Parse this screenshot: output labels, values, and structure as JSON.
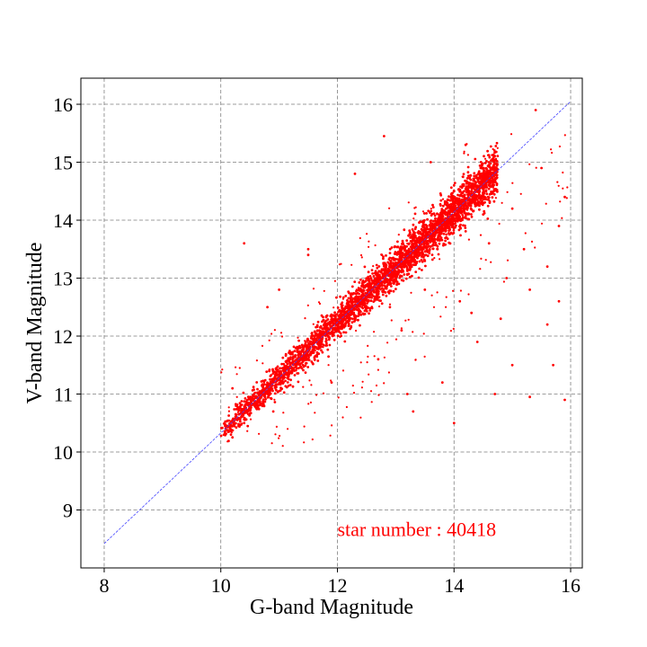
{
  "chart_data": {
    "type": "scatter",
    "title": "",
    "xlabel": "G-band Magnitude",
    "ylabel": "V-band Magnitude",
    "xlim": [
      7.6,
      16.2
    ],
    "ylim": [
      8.0,
      16.45
    ],
    "xticks": [
      8,
      10,
      12,
      14,
      16
    ],
    "yticks": [
      9,
      10,
      11,
      12,
      13,
      14,
      15,
      16
    ],
    "grid": true,
    "colors": {
      "points": "#ff0000",
      "reference_line": "#4444ff",
      "annotation": "#ff0000"
    },
    "reference_line": {
      "x": [
        8,
        16
      ],
      "y": [
        8.42,
        16.05
      ]
    },
    "main_sequence": {
      "x_range": [
        10.0,
        14.75
      ],
      "relation": {
        "slope": 0.955,
        "intercept": 0.78
      },
      "scatter_sigma": [
        0.1,
        0.2
      ]
    },
    "outlier_points": [
      [
        10.4,
        13.6
      ],
      [
        10.2,
        11.1
      ],
      [
        10.4,
        10.5
      ],
      [
        11.5,
        13.5
      ],
      [
        10.9,
        10.7
      ],
      [
        12.8,
        15.45
      ],
      [
        12.3,
        14.8
      ],
      [
        11.5,
        11.6
      ],
      [
        11.9,
        11.2
      ],
      [
        13.3,
        10.7
      ],
      [
        13.8,
        11.2
      ],
      [
        14.4,
        11.9
      ],
      [
        14.3,
        12.4
      ],
      [
        14.8,
        12.3
      ],
      [
        15.0,
        11.5
      ],
      [
        15.3,
        10.95
      ],
      [
        15.7,
        11.5
      ],
      [
        15.9,
        10.9
      ],
      [
        15.3,
        12.8
      ],
      [
        15.2,
        13.5
      ],
      [
        15.8,
        13.9
      ],
      [
        15.9,
        14.4
      ],
      [
        15.5,
        14.9
      ],
      [
        15.4,
        15.9
      ],
      [
        15.0,
        14.2
      ],
      [
        14.9,
        13.0
      ],
      [
        14.6,
        13.6
      ],
      [
        13.2,
        11.0
      ],
      [
        14.0,
        10.5
      ],
      [
        12.9,
        12.5
      ],
      [
        13.5,
        12.8
      ],
      [
        14.1,
        12.6
      ],
      [
        15.6,
        13.2
      ],
      [
        15.6,
        12.2
      ],
      [
        14.7,
        11.0
      ],
      [
        12.7,
        11.6
      ],
      [
        13.1,
        12.1
      ],
      [
        11.0,
        12.8
      ],
      [
        11.5,
        13.4
      ],
      [
        10.8,
        12.5
      ],
      [
        14.2,
        15.3
      ],
      [
        13.6,
        15.0
      ],
      [
        14.0,
        14.6
      ],
      [
        14.5,
        14.1
      ],
      [
        15.8,
        12.6
      ]
    ],
    "annotations": [
      {
        "text": "star number : 40418",
        "x": 12.0,
        "y": 8.55,
        "color": "#ff0000"
      }
    ]
  }
}
